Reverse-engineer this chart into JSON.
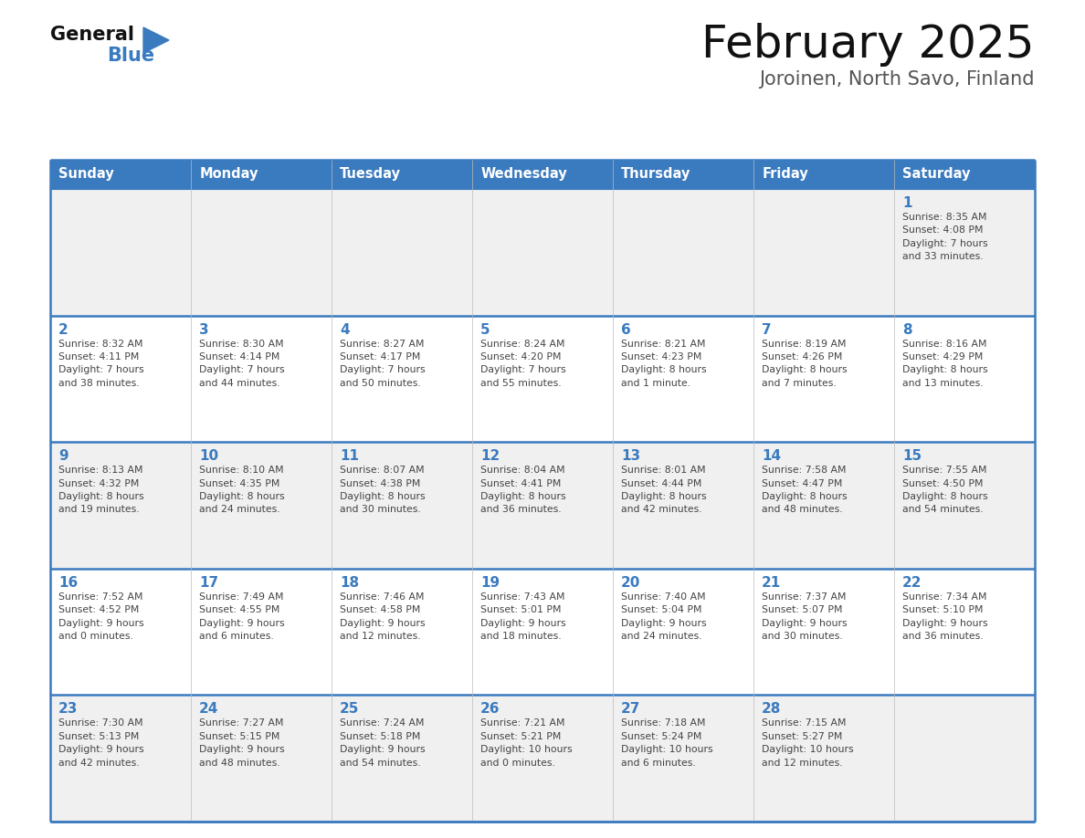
{
  "title": "February 2025",
  "subtitle": "Joroinen, North Savo, Finland",
  "header_color": "#3a7abf",
  "header_text_color": "#ffffff",
  "cell_bg_color_odd": "#f0f0f0",
  "cell_bg_color_even": "#ffffff",
  "day_number_color": "#3a7abf",
  "info_text_color": "#444444",
  "border_color": "#3a7abf",
  "line_color_inner": "#3a7abf",
  "days_of_week": [
    "Sunday",
    "Monday",
    "Tuesday",
    "Wednesday",
    "Thursday",
    "Friday",
    "Saturday"
  ],
  "weeks": [
    [
      {
        "day": null,
        "info": null
      },
      {
        "day": null,
        "info": null
      },
      {
        "day": null,
        "info": null
      },
      {
        "day": null,
        "info": null
      },
      {
        "day": null,
        "info": null
      },
      {
        "day": null,
        "info": null
      },
      {
        "day": 1,
        "info": "Sunrise: 8:35 AM\nSunset: 4:08 PM\nDaylight: 7 hours\nand 33 minutes."
      }
    ],
    [
      {
        "day": 2,
        "info": "Sunrise: 8:32 AM\nSunset: 4:11 PM\nDaylight: 7 hours\nand 38 minutes."
      },
      {
        "day": 3,
        "info": "Sunrise: 8:30 AM\nSunset: 4:14 PM\nDaylight: 7 hours\nand 44 minutes."
      },
      {
        "day": 4,
        "info": "Sunrise: 8:27 AM\nSunset: 4:17 PM\nDaylight: 7 hours\nand 50 minutes."
      },
      {
        "day": 5,
        "info": "Sunrise: 8:24 AM\nSunset: 4:20 PM\nDaylight: 7 hours\nand 55 minutes."
      },
      {
        "day": 6,
        "info": "Sunrise: 8:21 AM\nSunset: 4:23 PM\nDaylight: 8 hours\nand 1 minute."
      },
      {
        "day": 7,
        "info": "Sunrise: 8:19 AM\nSunset: 4:26 PM\nDaylight: 8 hours\nand 7 minutes."
      },
      {
        "day": 8,
        "info": "Sunrise: 8:16 AM\nSunset: 4:29 PM\nDaylight: 8 hours\nand 13 minutes."
      }
    ],
    [
      {
        "day": 9,
        "info": "Sunrise: 8:13 AM\nSunset: 4:32 PM\nDaylight: 8 hours\nand 19 minutes."
      },
      {
        "day": 10,
        "info": "Sunrise: 8:10 AM\nSunset: 4:35 PM\nDaylight: 8 hours\nand 24 minutes."
      },
      {
        "day": 11,
        "info": "Sunrise: 8:07 AM\nSunset: 4:38 PM\nDaylight: 8 hours\nand 30 minutes."
      },
      {
        "day": 12,
        "info": "Sunrise: 8:04 AM\nSunset: 4:41 PM\nDaylight: 8 hours\nand 36 minutes."
      },
      {
        "day": 13,
        "info": "Sunrise: 8:01 AM\nSunset: 4:44 PM\nDaylight: 8 hours\nand 42 minutes."
      },
      {
        "day": 14,
        "info": "Sunrise: 7:58 AM\nSunset: 4:47 PM\nDaylight: 8 hours\nand 48 minutes."
      },
      {
        "day": 15,
        "info": "Sunrise: 7:55 AM\nSunset: 4:50 PM\nDaylight: 8 hours\nand 54 minutes."
      }
    ],
    [
      {
        "day": 16,
        "info": "Sunrise: 7:52 AM\nSunset: 4:52 PM\nDaylight: 9 hours\nand 0 minutes."
      },
      {
        "day": 17,
        "info": "Sunrise: 7:49 AM\nSunset: 4:55 PM\nDaylight: 9 hours\nand 6 minutes."
      },
      {
        "day": 18,
        "info": "Sunrise: 7:46 AM\nSunset: 4:58 PM\nDaylight: 9 hours\nand 12 minutes."
      },
      {
        "day": 19,
        "info": "Sunrise: 7:43 AM\nSunset: 5:01 PM\nDaylight: 9 hours\nand 18 minutes."
      },
      {
        "day": 20,
        "info": "Sunrise: 7:40 AM\nSunset: 5:04 PM\nDaylight: 9 hours\nand 24 minutes."
      },
      {
        "day": 21,
        "info": "Sunrise: 7:37 AM\nSunset: 5:07 PM\nDaylight: 9 hours\nand 30 minutes."
      },
      {
        "day": 22,
        "info": "Sunrise: 7:34 AM\nSunset: 5:10 PM\nDaylight: 9 hours\nand 36 minutes."
      }
    ],
    [
      {
        "day": 23,
        "info": "Sunrise: 7:30 AM\nSunset: 5:13 PM\nDaylight: 9 hours\nand 42 minutes."
      },
      {
        "day": 24,
        "info": "Sunrise: 7:27 AM\nSunset: 5:15 PM\nDaylight: 9 hours\nand 48 minutes."
      },
      {
        "day": 25,
        "info": "Sunrise: 7:24 AM\nSunset: 5:18 PM\nDaylight: 9 hours\nand 54 minutes."
      },
      {
        "day": 26,
        "info": "Sunrise: 7:21 AM\nSunset: 5:21 PM\nDaylight: 10 hours\nand 0 minutes."
      },
      {
        "day": 27,
        "info": "Sunrise: 7:18 AM\nSunset: 5:24 PM\nDaylight: 10 hours\nand 6 minutes."
      },
      {
        "day": 28,
        "info": "Sunrise: 7:15 AM\nSunset: 5:27 PM\nDaylight: 10 hours\nand 12 minutes."
      },
      {
        "day": null,
        "info": null
      }
    ]
  ],
  "logo_text_general": "General",
  "logo_text_blue": "Blue",
  "logo_color_general": "#111111",
  "logo_color_blue": "#3a7abf",
  "logo_triangle_color": "#3a7abf"
}
